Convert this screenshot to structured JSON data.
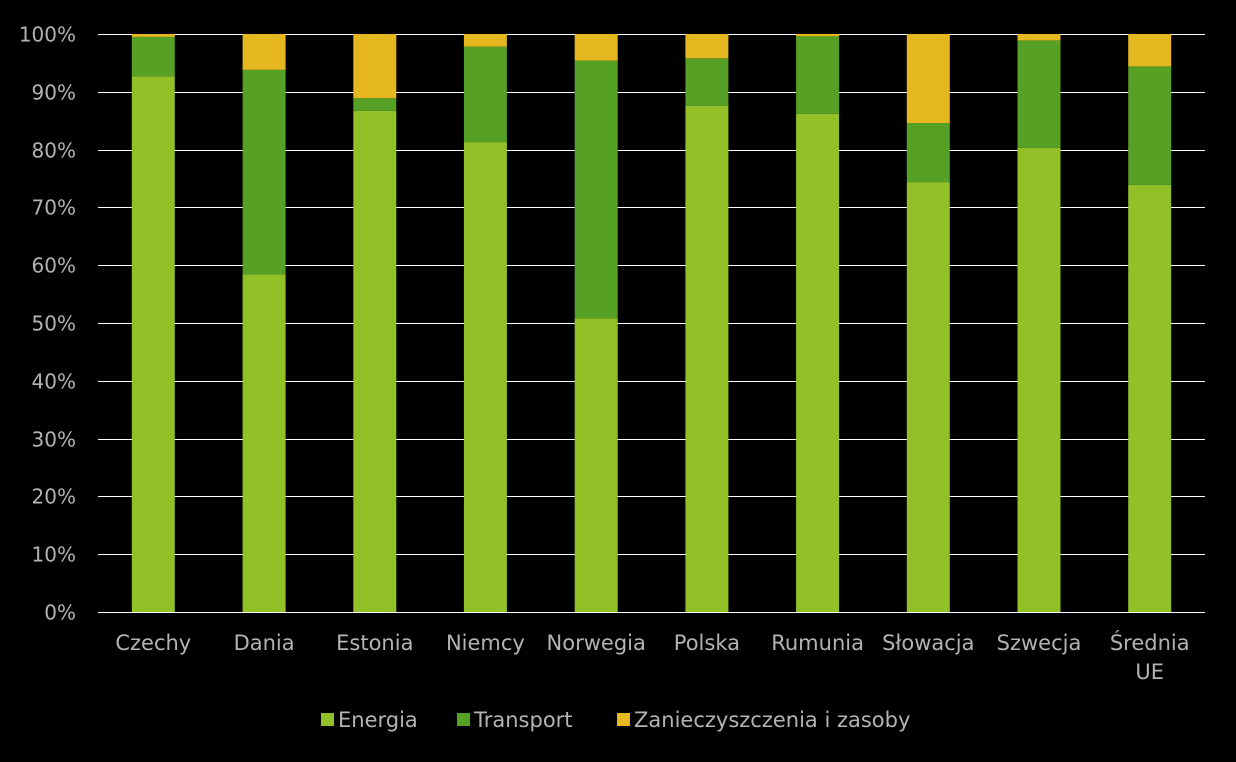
{
  "chart_data": {
    "type": "bar",
    "stacked": true,
    "title": "",
    "xlabel": "",
    "ylabel": "",
    "ylim": [
      0,
      100
    ],
    "y_ticks": [
      "0%",
      "10%",
      "20%",
      "30%",
      "40%",
      "50%",
      "60%",
      "70%",
      "80%",
      "90%",
      "100%"
    ],
    "grid": true,
    "legend_position": "bottom",
    "categories": [
      [
        "Czechy"
      ],
      [
        "Dania"
      ],
      [
        "Estonia"
      ],
      [
        "Niemcy"
      ],
      [
        "Norwegia"
      ],
      [
        "Polska"
      ],
      [
        "Rumunia"
      ],
      [
        "Słowacja"
      ],
      [
        "Szwecja"
      ],
      [
        "Średnia",
        "UE"
      ]
    ],
    "series": [
      {
        "name": "Energia",
        "color": "#92c127",
        "values": [
          92.7,
          58.4,
          86.7,
          81.3,
          50.8,
          87.6,
          86.2,
          74.3,
          80.3,
          73.9
        ]
      },
      {
        "name": "Transport",
        "color": "#56a026",
        "values": [
          6.8,
          35.4,
          2.2,
          16.5,
          44.6,
          8.2,
          13.4,
          10.3,
          18.6,
          20.5
        ]
      },
      {
        "name": "Zanieczyszczenia i zasoby",
        "color": "#e6b820",
        "values": [
          0.5,
          6.2,
          11.1,
          2.2,
          4.6,
          4.2,
          0.4,
          15.4,
          1.1,
          5.6
        ]
      }
    ]
  }
}
